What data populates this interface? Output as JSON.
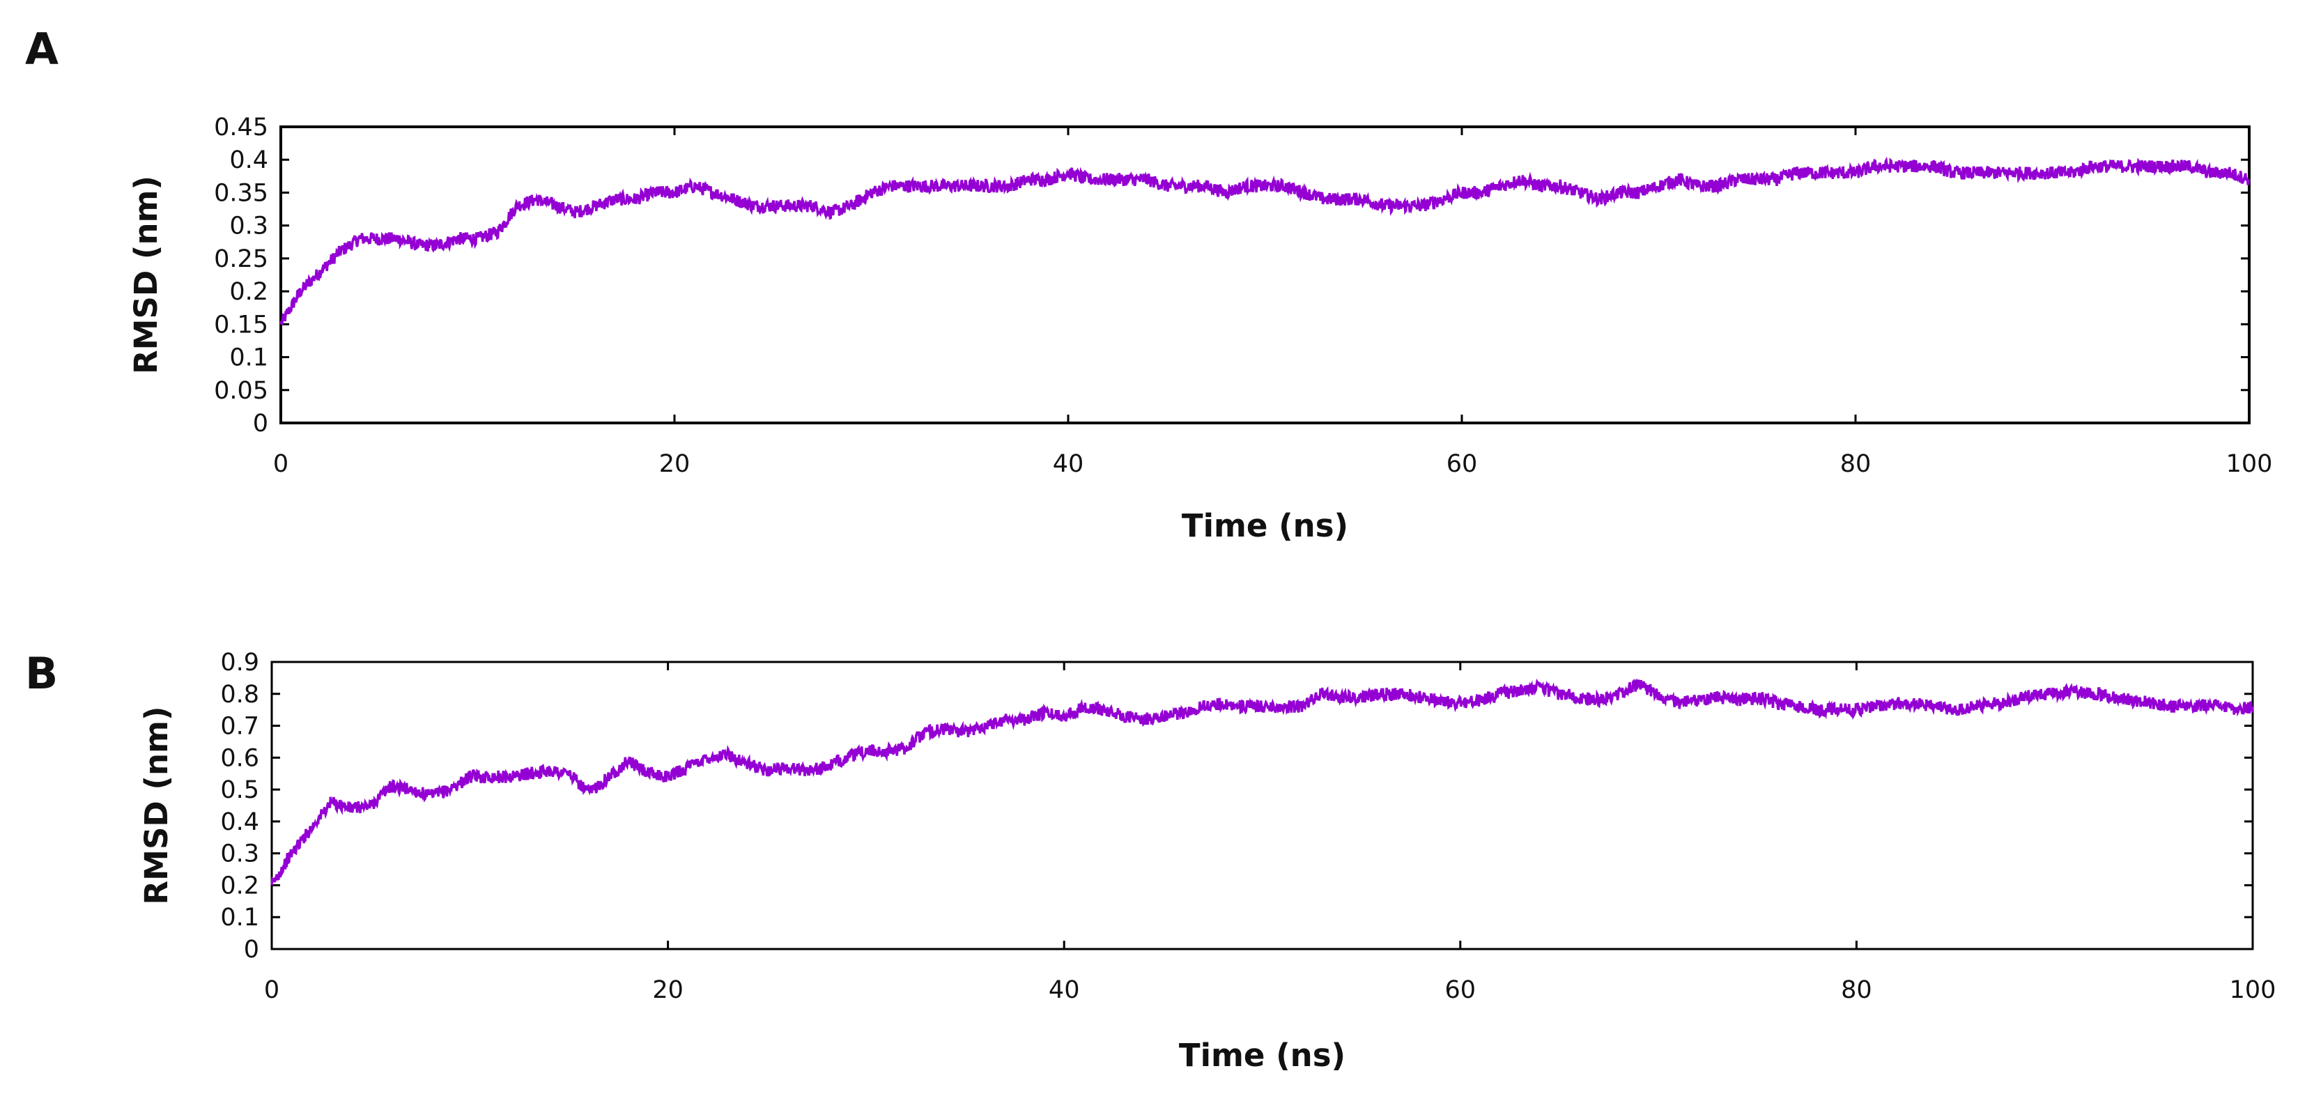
{
  "figure": {
    "panel_labels": [
      "A",
      "B"
    ]
  },
  "chart_data": [
    {
      "type": "line",
      "panel": "A",
      "title": "",
      "xlabel": "Time (ns)",
      "ylabel": "RMSD (nm)",
      "xlim": [
        0,
        100
      ],
      "ylim": [
        0,
        0.45
      ],
      "x_ticks": [
        0,
        20,
        40,
        60,
        80,
        100
      ],
      "x_tick_labels": [
        "0",
        "20",
        "40",
        "60",
        "80",
        "100"
      ],
      "y_ticks": [
        0,
        0.05,
        0.1,
        0.15,
        0.2,
        0.25,
        0.3,
        0.35,
        0.4,
        0.45
      ],
      "y_tick_labels": [
        "0",
        "0.05",
        "0.1",
        "0.15",
        "0.2",
        "0.25",
        "0.3",
        "0.35",
        "0.4",
        "0.45"
      ],
      "grid": false,
      "color": "#9400D3",
      "series": [
        {
          "x": [
            0,
            1,
            2,
            3,
            4,
            5,
            6,
            7,
            8,
            9,
            10,
            11,
            12,
            13,
            14,
            15,
            16,
            17,
            18,
            19,
            20,
            21,
            22,
            23,
            24,
            25,
            26,
            27,
            28,
            29,
            30,
            31,
            32,
            33,
            34,
            35,
            36,
            37,
            38,
            39,
            40,
            41,
            42,
            43,
            44,
            45,
            46,
            47,
            48,
            49,
            50,
            51,
            52,
            53,
            54,
            55,
            56,
            57,
            58,
            59,
            60,
            61,
            62,
            63,
            64,
            65,
            66,
            67,
            68,
            69,
            70,
            71,
            72,
            73,
            74,
            75,
            76,
            77,
            78,
            79,
            80,
            81,
            82,
            83,
            84,
            85,
            86,
            87,
            88,
            89,
            90,
            91,
            92,
            93,
            94,
            95,
            96,
            97,
            98,
            99,
            100
          ],
          "y": [
            0.15,
            0.2,
            0.23,
            0.26,
            0.28,
            0.28,
            0.28,
            0.27,
            0.27,
            0.28,
            0.28,
            0.29,
            0.33,
            0.34,
            0.33,
            0.32,
            0.33,
            0.34,
            0.34,
            0.35,
            0.35,
            0.36,
            0.35,
            0.34,
            0.33,
            0.33,
            0.33,
            0.33,
            0.32,
            0.33,
            0.35,
            0.36,
            0.36,
            0.36,
            0.36,
            0.36,
            0.36,
            0.36,
            0.37,
            0.37,
            0.38,
            0.37,
            0.37,
            0.37,
            0.37,
            0.36,
            0.36,
            0.36,
            0.35,
            0.36,
            0.36,
            0.36,
            0.35,
            0.34,
            0.34,
            0.34,
            0.33,
            0.33,
            0.33,
            0.34,
            0.35,
            0.35,
            0.36,
            0.37,
            0.36,
            0.36,
            0.35,
            0.34,
            0.35,
            0.35,
            0.36,
            0.37,
            0.36,
            0.36,
            0.37,
            0.37,
            0.37,
            0.38,
            0.38,
            0.38,
            0.38,
            0.39,
            0.39,
            0.39,
            0.39,
            0.38,
            0.38,
            0.38,
            0.38,
            0.38,
            0.38,
            0.38,
            0.39,
            0.39,
            0.39,
            0.39,
            0.39,
            0.39,
            0.38,
            0.38,
            0.37
          ]
        }
      ]
    },
    {
      "type": "line",
      "panel": "B",
      "title": "",
      "xlabel": "Time (ns)",
      "ylabel": "RMSD (nm)",
      "xlim": [
        0,
        100
      ],
      "ylim": [
        0,
        0.9
      ],
      "x_ticks": [
        0,
        20,
        40,
        60,
        80,
        100
      ],
      "x_tick_labels": [
        "0",
        "20",
        "40",
        "60",
        "80",
        "100"
      ],
      "y_ticks": [
        0,
        0.1,
        0.2,
        0.3,
        0.4,
        0.5,
        0.6,
        0.7,
        0.8,
        0.9
      ],
      "y_tick_labels": [
        "0",
        "0.1",
        "0.2",
        "0.3",
        "0.4",
        "0.5",
        "0.6",
        "0.7",
        "0.8",
        "0.9"
      ],
      "grid": false,
      "color": "#9400D3",
      "series": [
        {
          "x": [
            0,
            1,
            2,
            3,
            4,
            5,
            6,
            7,
            8,
            9,
            10,
            11,
            12,
            13,
            14,
            15,
            16,
            17,
            18,
            19,
            20,
            21,
            22,
            23,
            24,
            25,
            26,
            27,
            28,
            29,
            30,
            31,
            32,
            33,
            34,
            35,
            36,
            37,
            38,
            39,
            40,
            41,
            42,
            43,
            44,
            45,
            46,
            47,
            48,
            49,
            50,
            51,
            52,
            53,
            54,
            55,
            56,
            57,
            58,
            59,
            60,
            61,
            62,
            63,
            64,
            65,
            66,
            67,
            68,
            69,
            70,
            71,
            72,
            73,
            74,
            75,
            76,
            77,
            78,
            79,
            80,
            81,
            82,
            83,
            84,
            85,
            86,
            87,
            88,
            89,
            90,
            91,
            92,
            93,
            94,
            95,
            96,
            97,
            98,
            99,
            100
          ],
          "y": [
            0.2,
            0.3,
            0.38,
            0.46,
            0.44,
            0.45,
            0.51,
            0.5,
            0.48,
            0.5,
            0.54,
            0.54,
            0.54,
            0.55,
            0.56,
            0.55,
            0.49,
            0.54,
            0.59,
            0.55,
            0.54,
            0.57,
            0.6,
            0.61,
            0.58,
            0.56,
            0.57,
            0.56,
            0.57,
            0.6,
            0.62,
            0.62,
            0.63,
            0.68,
            0.69,
            0.68,
            0.7,
            0.72,
            0.72,
            0.74,
            0.73,
            0.76,
            0.75,
            0.73,
            0.72,
            0.73,
            0.74,
            0.76,
            0.77,
            0.76,
            0.76,
            0.76,
            0.76,
            0.8,
            0.79,
            0.79,
            0.8,
            0.8,
            0.79,
            0.78,
            0.77,
            0.78,
            0.8,
            0.81,
            0.82,
            0.8,
            0.79,
            0.78,
            0.8,
            0.83,
            0.8,
            0.77,
            0.78,
            0.79,
            0.78,
            0.79,
            0.77,
            0.76,
            0.75,
            0.75,
            0.75,
            0.76,
            0.77,
            0.77,
            0.76,
            0.75,
            0.76,
            0.77,
            0.78,
            0.8,
            0.8,
            0.81,
            0.8,
            0.79,
            0.78,
            0.77,
            0.76,
            0.76,
            0.77,
            0.75,
            0.76
          ]
        }
      ]
    }
  ]
}
